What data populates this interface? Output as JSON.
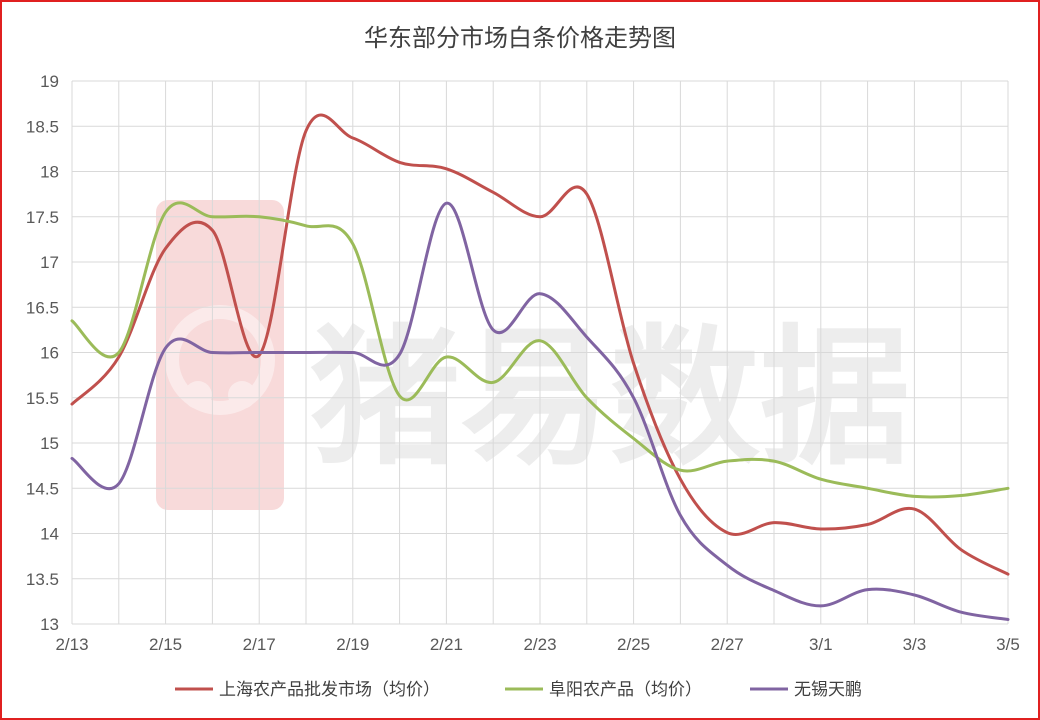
{
  "chart_data": {
    "type": "line",
    "title": "华东部分市场白条价格走势图",
    "xlabel": "",
    "ylabel": "",
    "ylim": [
      13,
      19
    ],
    "yticks": [
      "13",
      "13.5",
      "14",
      "14.5",
      "15",
      "15.5",
      "16",
      "16.5",
      "17",
      "17.5",
      "18",
      "18.5",
      "19"
    ],
    "x": [
      "2/13",
      "2/14",
      "2/15",
      "2/16",
      "2/17",
      "2/18",
      "2/19",
      "2/20",
      "2/21",
      "2/22",
      "2/23",
      "2/24",
      "2/25",
      "2/26",
      "2/27",
      "2/28",
      "3/1",
      "3/2",
      "3/3",
      "3/4",
      "3/5"
    ],
    "xtick_labels": [
      "2/13",
      "2/15",
      "2/17",
      "2/19",
      "2/21",
      "2/23",
      "2/25",
      "2/27",
      "3/1",
      "3/3",
      "3/5"
    ],
    "grid": true,
    "legend_position": "bottom",
    "series": [
      {
        "name": "上海农产品批发市场（均价）",
        "color": "#c0504d",
        "values": [
          15.43,
          15.95,
          17.15,
          17.35,
          15.97,
          18.45,
          18.37,
          18.1,
          18.03,
          17.77,
          17.5,
          17.75,
          15.88,
          14.6,
          14.01,
          14.12,
          14.05,
          14.1,
          14.27,
          13.82,
          13.55
        ]
      },
      {
        "name": "阜阳农产品（均价）",
        "color": "#9bbb59",
        "values": [
          16.35,
          16.0,
          17.55,
          17.5,
          17.5,
          17.4,
          17.2,
          15.52,
          15.95,
          15.67,
          16.13,
          15.5,
          15.05,
          14.7,
          14.8,
          14.8,
          14.6,
          14.5,
          14.41,
          14.42,
          14.5
        ]
      },
      {
        "name": "无锡天鹏",
        "color": "#8064a2",
        "values": [
          14.83,
          14.55,
          16.05,
          16.0,
          16.0,
          16.0,
          16.0,
          15.98,
          17.65,
          16.25,
          16.65,
          16.17,
          15.5,
          14.2,
          13.65,
          13.37,
          13.2,
          13.38,
          13.32,
          13.13,
          13.05
        ]
      }
    ],
    "watermark": "猪易数据"
  }
}
